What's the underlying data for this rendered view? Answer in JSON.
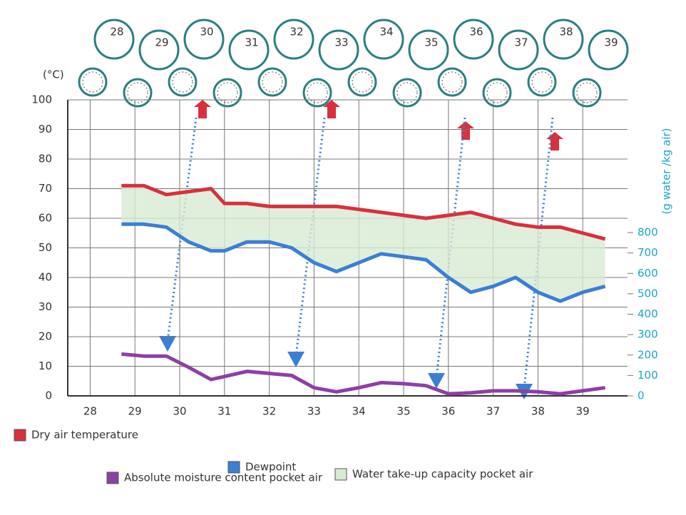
{
  "chart_data": {
    "type": "line",
    "y_label": "(°C)",
    "y2_label": "(g water /kg air)",
    "cylinders": [
      "28",
      "29",
      "30",
      "31",
      "32",
      "33",
      "34",
      "35",
      "36",
      "37",
      "38",
      "39"
    ],
    "xlim": [
      27.5,
      40
    ],
    "xticks": [
      28,
      29,
      30,
      31,
      32,
      33,
      34,
      35,
      36,
      37,
      38,
      39
    ],
    "ylim": [
      0,
      100
    ],
    "yticks": [
      0,
      10,
      20,
      30,
      40,
      50,
      60,
      70,
      80,
      90,
      100
    ],
    "y2lim": [
      0,
      1450
    ],
    "y2ticks": [
      0,
      100,
      200,
      300,
      400,
      500,
      600,
      700,
      800
    ],
    "grid": true,
    "x": [
      28.7,
      29.2,
      29.7,
      30.2,
      30.7,
      31.0,
      31.5,
      32.0,
      32.5,
      33.0,
      33.5,
      34.0,
      34.5,
      35.0,
      35.5,
      36.0,
      36.5,
      37.0,
      37.5,
      38.0,
      38.5,
      39.0,
      39.5
    ],
    "series": [
      {
        "name": "Dry air temperature",
        "color": "#d9303e",
        "values": [
          71,
          71,
          68,
          69,
          70,
          65,
          65,
          64,
          64,
          64,
          64,
          63,
          62,
          61,
          60,
          61,
          62,
          60,
          58,
          57,
          57,
          55,
          53
        ]
      },
      {
        "name": "Dewpoint",
        "color": "#3b7fd4",
        "values": [
          58,
          58,
          57,
          52,
          49,
          49,
          52,
          52,
          50,
          45,
          42,
          45,
          48,
          47,
          46,
          40,
          35,
          37,
          40,
          35,
          32,
          35,
          37
        ]
      },
      {
        "name": "Absolute moisture content pocket air",
        "color": "#8e3fa6",
        "axis": "y2",
        "values": [
          205,
          195,
          195,
          140,
          80,
          95,
          120,
          110,
          100,
          40,
          20,
          40,
          65,
          60,
          50,
          10,
          15,
          25,
          25,
          20,
          10,
          25,
          40
        ]
      }
    ],
    "band": {
      "name": "Water take-up capacity pocket air",
      "color": "#d8ead3"
    }
  }
}
